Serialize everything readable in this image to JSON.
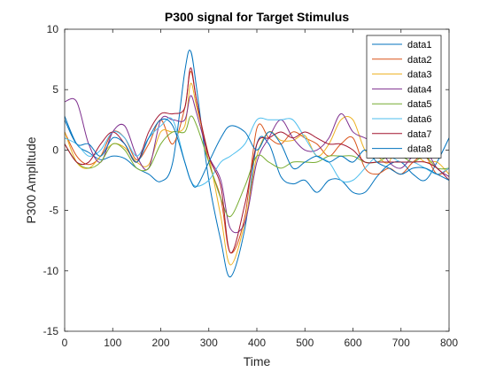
{
  "chart_data": {
    "type": "line",
    "title": "P300 signal for Target Stimulus",
    "xlabel": "Time",
    "ylabel": "P300 Amplitude",
    "xlim": [
      0,
      800
    ],
    "ylim": [
      -15,
      10
    ],
    "xticks": [
      0,
      100,
      200,
      300,
      400,
      500,
      600,
      700,
      800
    ],
    "yticks": [
      -15,
      -10,
      -5,
      0,
      5,
      10
    ],
    "xtick_labels": [
      "0",
      "100",
      "200",
      "300",
      "400",
      "500",
      "600",
      "700",
      "800"
    ],
    "ytick_labels": [
      "-15",
      "-10",
      "-5",
      "0",
      "5",
      "10"
    ],
    "grid": false,
    "legend_position": "top-right",
    "x": [
      0,
      25,
      50,
      75,
      100,
      125,
      150,
      175,
      200,
      225,
      250,
      262,
      275,
      300,
      325,
      345,
      375,
      400,
      425,
      450,
      475,
      500,
      525,
      550,
      575,
      600,
      625,
      650,
      675,
      700,
      725,
      750,
      775,
      800
    ],
    "series": [
      {
        "name": "data1",
        "color": "#0072BD",
        "values": [
          2.8,
          0.5,
          -0.2,
          -0.8,
          -0.5,
          -0.7,
          -1.5,
          -2.0,
          -2.6,
          -1.0,
          6.5,
          8.2,
          5.0,
          -2.5,
          -7.5,
          -10.5,
          -6.5,
          0.5,
          0.5,
          -2.2,
          -2.8,
          -2.5,
          -3.5,
          -2.5,
          -2.5,
          -3.5,
          -3.5,
          -2.2,
          -1.2,
          -1.0,
          -2.0,
          -2.5,
          -1.0,
          1.0
        ]
      },
      {
        "name": "data2",
        "color": "#D95319",
        "values": [
          1.5,
          -0.5,
          -1.2,
          -0.5,
          1.5,
          1.0,
          -0.8,
          0.5,
          2.5,
          0.5,
          3.5,
          6.5,
          4.0,
          -1.0,
          -4.0,
          -8.5,
          -5.5,
          1.8,
          1.0,
          0.5,
          1.5,
          1.0,
          0.5,
          -0.5,
          0.5,
          1.0,
          -1.5,
          -2.0,
          -1.5,
          -2.0,
          -1.0,
          -0.5,
          -2.0,
          -1.5
        ]
      },
      {
        "name": "data3",
        "color": "#EDB120",
        "values": [
          1.5,
          -1.0,
          -1.5,
          -0.5,
          0.5,
          0.2,
          -1.0,
          -1.2,
          1.5,
          1.5,
          2.0,
          5.5,
          3.5,
          -0.5,
          -5.5,
          -9.5,
          -6.0,
          -0.5,
          1.5,
          0.8,
          0.8,
          1.2,
          -0.5,
          0.5,
          2.5,
          2.5,
          0.0,
          -0.5,
          -1.0,
          1.5,
          0.0,
          -1.0,
          -1.0,
          -2.0
        ]
      },
      {
        "name": "data4",
        "color": "#7E2F8E",
        "values": [
          4.0,
          4.0,
          0.5,
          -1.0,
          1.5,
          2.0,
          -0.5,
          -1.5,
          2.5,
          2.5,
          2.5,
          4.5,
          3.0,
          -0.5,
          -2.5,
          -6.5,
          -6.0,
          -1.0,
          1.0,
          2.5,
          1.0,
          0.0,
          0.0,
          1.0,
          3.0,
          1.5,
          1.0,
          0.5,
          -1.0,
          -1.5,
          -0.5,
          0.0,
          -1.5,
          -2.2
        ]
      },
      {
        "name": "data5",
        "color": "#77AC30",
        "values": [
          0.5,
          -1.0,
          -1.5,
          -1.0,
          0.5,
          0.0,
          -1.5,
          -1.5,
          0.5,
          1.5,
          1.5,
          2.8,
          2.0,
          -1.0,
          -4.0,
          -5.5,
          -3.0,
          -0.5,
          -1.0,
          -1.5,
          -1.0,
          -1.0,
          -1.0,
          -0.5,
          -0.5,
          -0.5,
          -1.0,
          -1.0,
          -0.5,
          -0.5,
          -1.0,
          -0.5,
          -1.5,
          -1.5
        ]
      },
      {
        "name": "data6",
        "color": "#4DBEEE",
        "values": [
          1.0,
          0.5,
          -0.5,
          0.0,
          1.5,
          1.0,
          -0.5,
          1.0,
          2.0,
          2.5,
          -1.0,
          -2.5,
          -3.0,
          -2.5,
          -1.0,
          -0.5,
          0.5,
          2.5,
          2.5,
          2.5,
          2.5,
          1.0,
          -0.5,
          -1.0,
          -2.5,
          -2.5,
          -1.5,
          -0.5,
          -0.5,
          -1.0,
          -1.0,
          -1.5,
          -2.0,
          -1.5
        ]
      },
      {
        "name": "data7",
        "color": "#A2142F",
        "values": [
          0.5,
          -1.0,
          -1.0,
          0.5,
          1.5,
          0.5,
          -1.0,
          1.5,
          3.0,
          3.0,
          3.5,
          6.8,
          4.0,
          -0.5,
          -3.0,
          -8.5,
          -4.5,
          0.5,
          1.0,
          1.5,
          1.0,
          1.5,
          1.0,
          0.5,
          0.5,
          0.0,
          -1.0,
          -1.0,
          -1.0,
          -1.0,
          -1.0,
          -1.0,
          -1.5,
          -2.5
        ]
      },
      {
        "name": "data8",
        "color": "#0072BD",
        "values": [
          2.5,
          0.5,
          0.5,
          -0.5,
          1.0,
          0.5,
          -1.0,
          1.0,
          2.5,
          2.0,
          -1.0,
          -2.5,
          -3.0,
          -1.0,
          1.0,
          2.0,
          1.5,
          0.0,
          1.5,
          0.5,
          -1.5,
          -1.0,
          -0.5,
          -1.0,
          -0.5,
          -1.0,
          0.0,
          -1.0,
          -1.5,
          -2.0,
          -1.5,
          -1.5,
          -2.0,
          -2.5
        ]
      }
    ]
  }
}
